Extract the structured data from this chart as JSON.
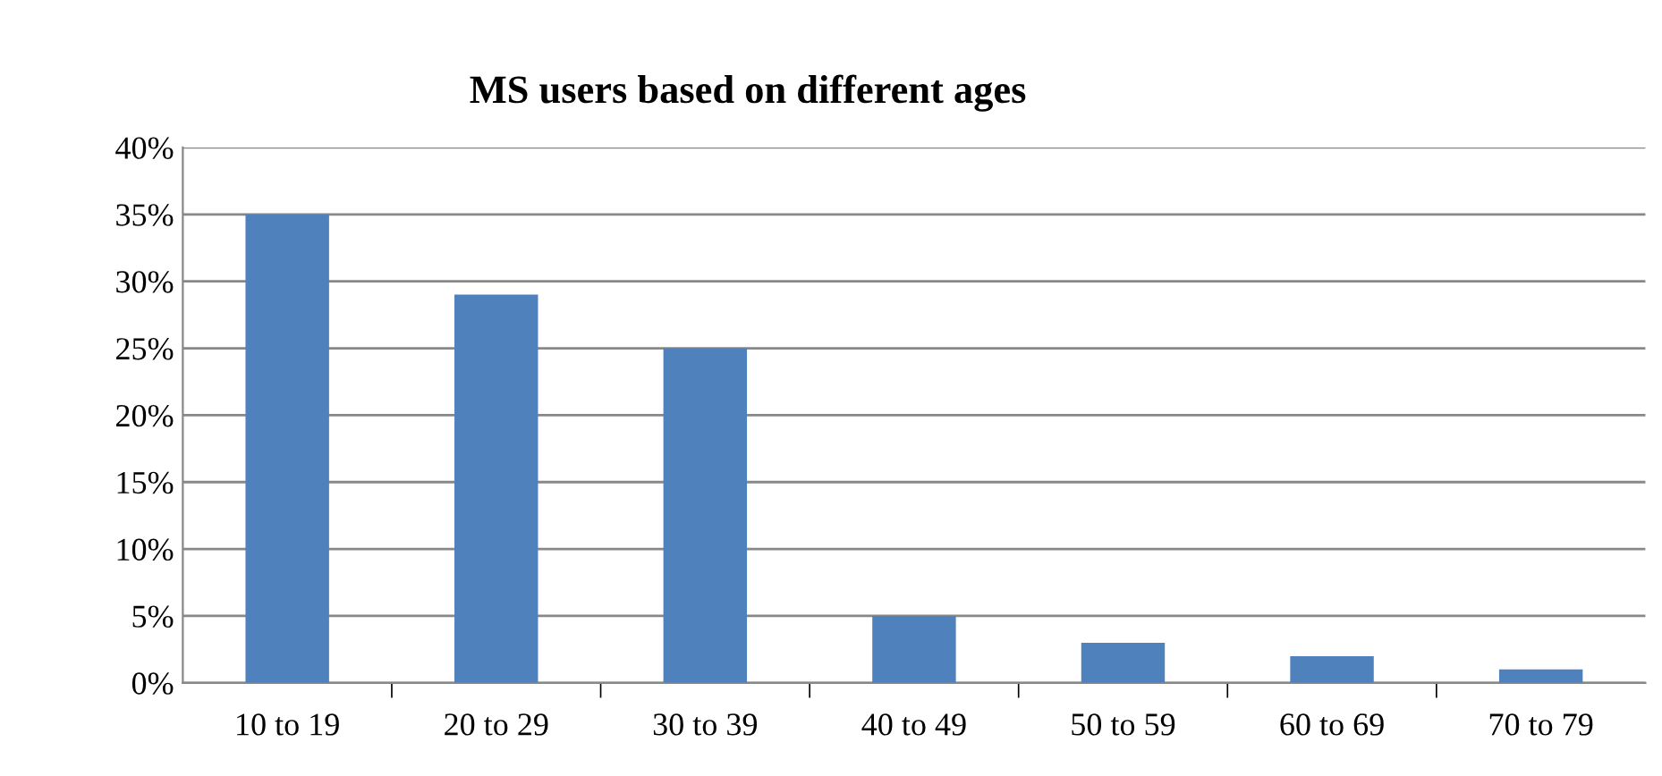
{
  "chart_data": {
    "type": "bar",
    "title": "MS users based on different ages",
    "categories": [
      "10 to 19",
      "20 to 29",
      "30 to 39",
      "40 to 49",
      "50 to 59",
      "60 to 69",
      "70 to 79"
    ],
    "values": [
      35,
      29,
      25,
      5,
      3,
      2,
      1
    ],
    "color": "#4f81bd",
    "ylim": [
      0,
      40
    ],
    "yticks": [
      {
        "value": 0,
        "label": "0%"
      },
      {
        "value": 5,
        "label": "5%"
      },
      {
        "value": 10,
        "label": "10%"
      },
      {
        "value": 15,
        "label": "15%"
      },
      {
        "value": 20,
        "label": "20%"
      },
      {
        "value": 25,
        "label": "25%"
      },
      {
        "value": 30,
        "label": "30%"
      },
      {
        "value": 35,
        "label": "35%"
      },
      {
        "value": 40,
        "label": "40%"
      }
    ],
    "grid": "y",
    "legend": false
  }
}
